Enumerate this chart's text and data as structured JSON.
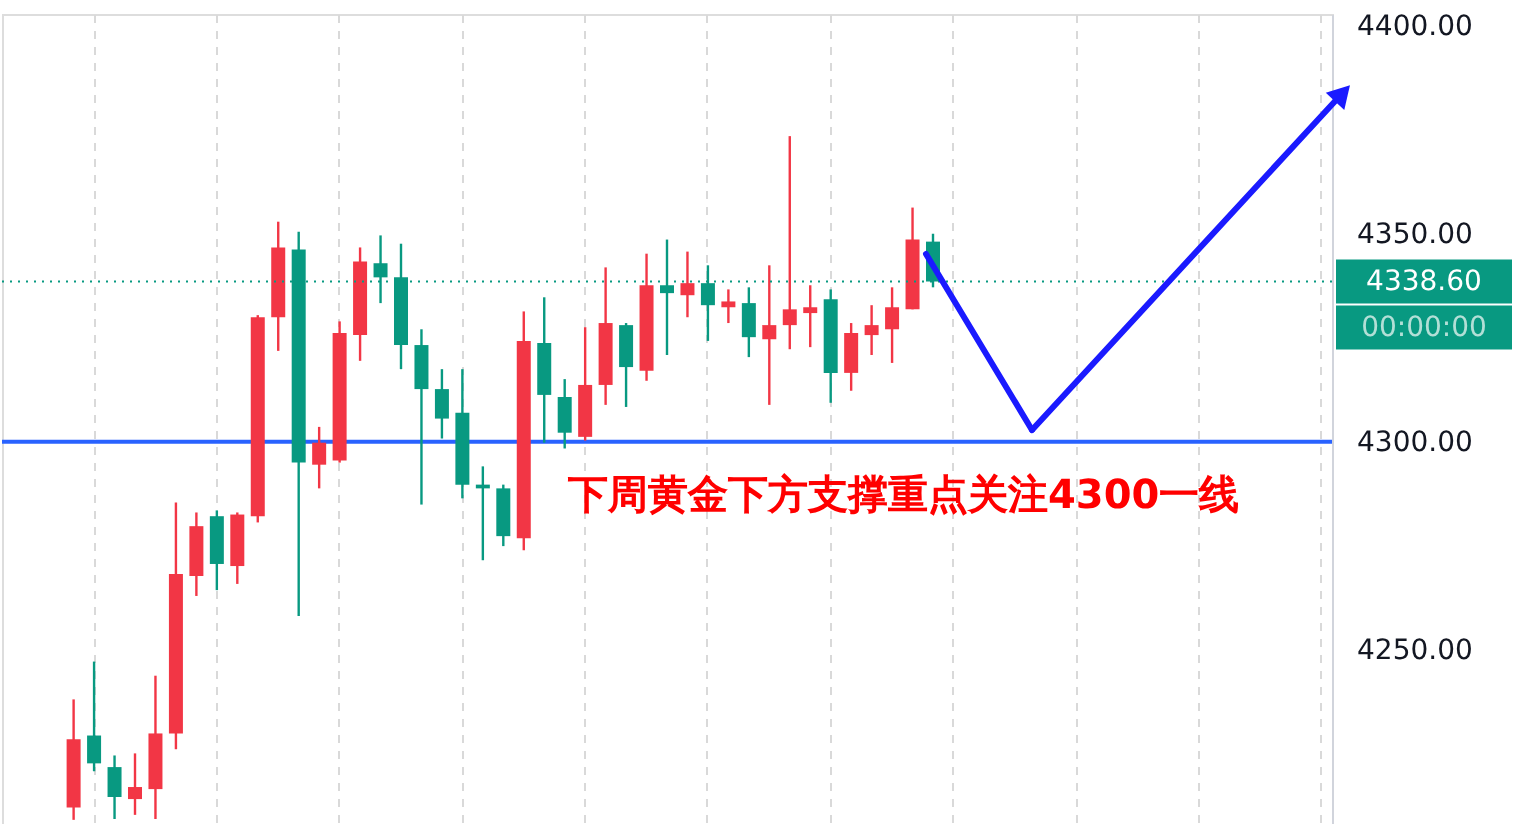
{
  "chart_data": {
    "type": "candlestick",
    "categories": [
      null,
      null,
      null,
      null,
      null,
      null,
      null,
      null,
      null,
      null,
      null,
      null,
      null,
      null,
      null,
      null,
      null,
      null,
      null,
      null,
      null,
      null,
      null,
      null,
      null,
      null,
      null,
      null,
      null,
      null,
      null,
      null,
      null,
      null,
      null,
      null,
      null,
      null,
      null,
      null,
      null,
      null,
      null,
      null,
      null,
      null,
      null,
      null,
      null,
      null,
      null,
      null,
      null,
      null,
      null,
      null,
      null,
      null,
      null,
      null,
      null,
      null,
      null,
      null,
      null
    ],
    "ohlc": [
      null,
      null,
      null,
      [
        4212,
        4238.0,
        4209,
        4228.4
      ],
      [
        4229.3,
        4247.1,
        4220.7,
        4222.6
      ],
      [
        4221.7,
        4224.5,
        4209.2,
        4214.5
      ],
      [
        4214.0,
        4225.0,
        4210.2,
        4216.9
      ],
      [
        4216.4,
        4243.7,
        4209.2,
        4229.8
      ],
      [
        4229.8,
        4285.4,
        4226.0,
        4268.2
      ],
      [
        4267.7,
        4283.0,
        4262.9,
        4279.7
      ],
      [
        4282.1,
        4283.5,
        4264.3,
        4270.6
      ],
      [
        4270.1,
        4283.0,
        4265.8,
        4282.5
      ],
      [
        4282.1,
        4330.5,
        4280.6,
        4330.0
      ],
      [
        4330.0,
        4353.0,
        4321.9,
        4346.8
      ],
      [
        4346.3,
        4350.6,
        4258.1,
        4295.0
      ],
      [
        4294.5,
        4303.6,
        4288.8,
        4299.8
      ],
      [
        4295.5,
        4329.0,
        4295.0,
        4326.2
      ],
      [
        4325.7,
        4346.8,
        4319.5,
        4343.4
      ],
      [
        4343.0,
        4349.7,
        4333.4,
        4339.6
      ],
      [
        4339.6,
        4347.7,
        4317.5,
        4323.3
      ],
      [
        4323.3,
        4327.1,
        4284.9,
        4312.7
      ],
      [
        4312.7,
        4317.5,
        4300.8,
        4305.6
      ],
      [
        4307.0,
        4317.5,
        4286.4,
        4289.7
      ],
      [
        4289.7,
        4294.1,
        4271.5,
        4288.8
      ],
      [
        4288.8,
        4289.7,
        4274.9,
        4277.3
      ],
      [
        4276.8,
        4331.4,
        4273.9,
        4324.3
      ],
      [
        4323.8,
        4334.8,
        4299.8,
        4311.3
      ],
      [
        4310.8,
        4315.1,
        4298.4,
        4302.2
      ],
      [
        4301.2,
        4327.6,
        4300.3,
        4313.7
      ],
      [
        4313.7,
        4342.0,
        4308.9,
        4328.6
      ],
      [
        4328.1,
        4328.6,
        4308.4,
        4318.0
      ],
      [
        4317.1,
        4345.3,
        4314.7,
        4337.7
      ],
      [
        4337.7,
        4348.7,
        4320.9,
        4335.8
      ],
      [
        4335.3,
        4345.8,
        4330.0,
        4338.2
      ],
      [
        4338.2,
        4342.5,
        4324.3,
        4332.9
      ],
      [
        4332.4,
        4336.7,
        4328.6,
        4333.8
      ],
      [
        4333.4,
        4337.2,
        4320.4,
        4325.2
      ],
      [
        4324.7,
        4342.5,
        4308.9,
        4328.1
      ],
      [
        4328.1,
        4373.6,
        4322.3,
        4331.9
      ],
      [
        4331.0,
        4337.7,
        4322.8,
        4332.4
      ],
      [
        4334.3,
        4336.7,
        4309.4,
        4316.6
      ],
      [
        4316.6,
        4328.6,
        4312.3,
        4326.2
      ],
      [
        4325.7,
        4332.9,
        4320.9,
        4328.1
      ],
      [
        4327.1,
        4337.2,
        4319.0,
        4332.4
      ],
      [
        4331.9,
        4356.4,
        4331.9,
        4348.7
      ],
      [
        4348.2,
        4350.1,
        4337.2,
        4338.6
      ],
      null,
      null,
      null,
      null,
      null,
      null,
      null,
      null,
      null,
      null,
      null,
      null,
      null,
      null,
      null,
      null,
      null,
      null,
      null
    ],
    "colors": [
      null,
      null,
      null,
      "#f23645",
      "#089981",
      "#089981",
      "#f23645",
      "#f23645",
      "#f23645",
      "#f23645",
      "#089981",
      "#f23645",
      "#f23645",
      "#f23645",
      "#089981",
      "#f23645",
      "#f23645",
      "#f23645",
      "#089981",
      "#089981",
      "#089981",
      "#089981",
      "#089981",
      "#089981",
      "#089981",
      "#f23645",
      "#089981",
      "#089981",
      "#f23645",
      "#f23645",
      "#089981",
      "#f23645",
      "#089981",
      "#f23645",
      "#089981",
      "#f23645",
      "#089981",
      "#f23645",
      "#f23645",
      "#f23645",
      "#089981",
      "#f23645",
      "#f23645",
      "#f23645",
      "#f23645",
      "#089981",
      null,
      null,
      null,
      null,
      null,
      null,
      null,
      null,
      null,
      null,
      null,
      null,
      null,
      null,
      null,
      null,
      null,
      null,
      null
    ],
    "ylim": [
      4208,
      4403
    ],
    "yticks": [
      {
        "value": 4250,
        "label": "4250.00"
      },
      {
        "value": 4300,
        "label": "4300.00"
      },
      {
        "value": 4350,
        "label": "4350.00"
      },
      {
        "value": 4400,
        "label": "4400.00"
      }
    ],
    "tick_labels": "y",
    "grid": "x",
    "ref_lines": [
      {
        "axis": "y",
        "value": 4300,
        "color": "#2962ff",
        "line_style": "solid"
      },
      {
        "axis": "y",
        "value": 4338.6,
        "label": "4338.60",
        "color": "#089981",
        "line_style": "dotted"
      }
    ],
    "annotations": [
      "00:00:00",
      "下周黄金下方支撑重点关注4300一线"
    ]
  }
}
